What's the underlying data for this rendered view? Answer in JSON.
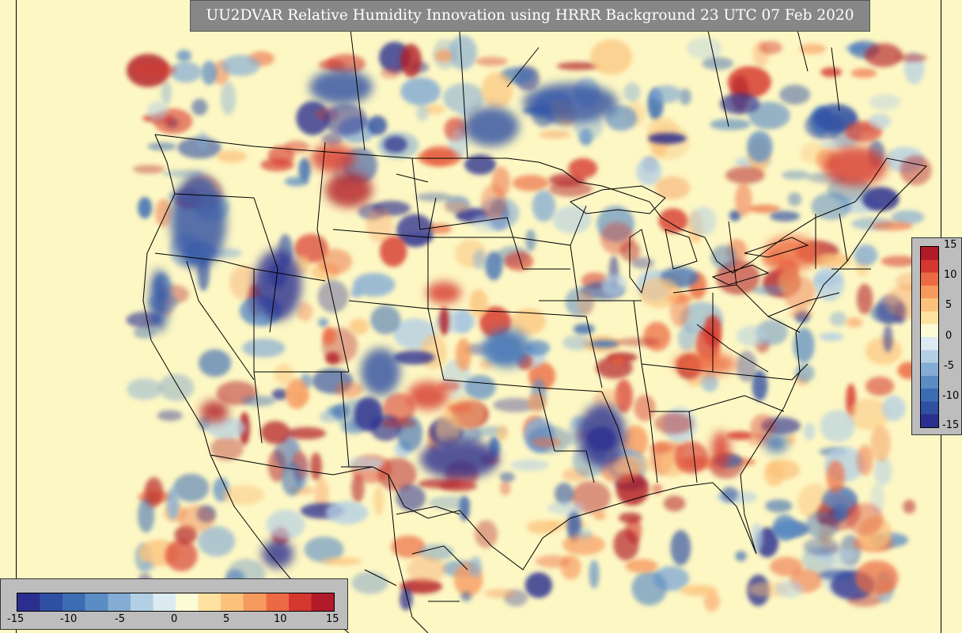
{
  "title": "UU2DVAR Relative Humidity Innovation using HRRR Background 23 UTC 07 Feb 2020",
  "colorbar": {
    "ticks_horizontal": [
      "-15",
      "-10",
      "-5",
      "0",
      "5",
      "10",
      "15"
    ],
    "ticks_vertical": [
      "15",
      "10",
      "5",
      "0",
      "-5",
      "-10",
      "-15"
    ],
    "colors": [
      "#2a2f8f",
      "#2f4fa3",
      "#3c6db3",
      "#5b8cc4",
      "#84acd4",
      "#b3cfe4",
      "#dceaf1",
      "#fbfbd6",
      "#fde2a0",
      "#fcc27c",
      "#f79a5e",
      "#ec6a43",
      "#d6372f",
      "#b11a28"
    ]
  },
  "map": {
    "land_color": "#fdf7c4",
    "positive_color": "#d6372f",
    "negative_color": "#2f4fa3"
  }
}
